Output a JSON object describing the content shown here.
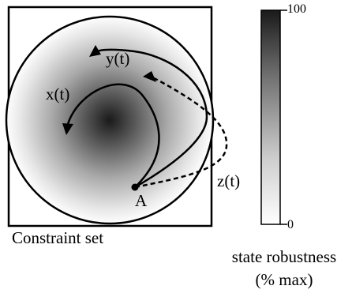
{
  "diagram": {
    "constraint_set_label": "Constraint set",
    "trajectories": [
      {
        "label": "x(t)"
      },
      {
        "label": "y(t)"
      },
      {
        "label": "z(t)"
      }
    ],
    "start_point_label": "A",
    "colorbar": {
      "max_label": "100",
      "min_label": "0",
      "title_line1": "state robustness",
      "title_line2": "(% max)",
      "colors": {
        "max": "#1a1a1a",
        "min": "#ffffff"
      }
    }
  }
}
